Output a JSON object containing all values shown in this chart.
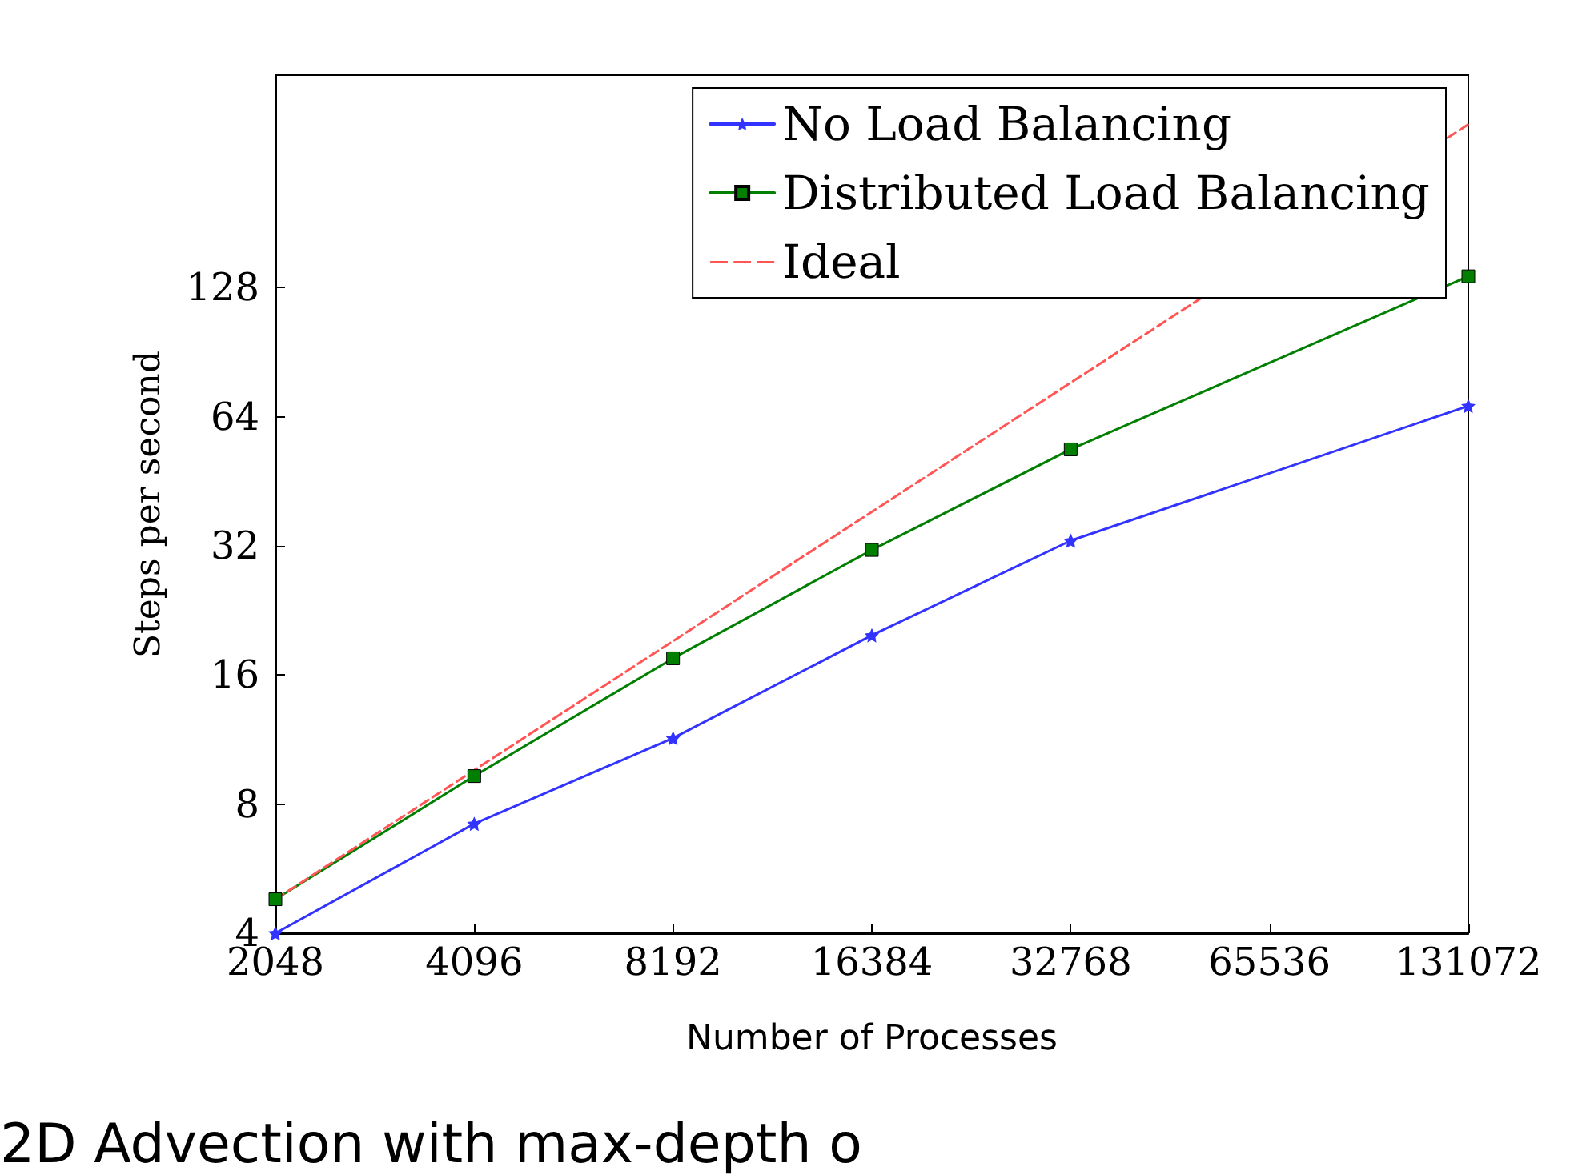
{
  "chart_data": {
    "type": "line",
    "xlabel": "Number of Processes",
    "ylabel": "Steps per second",
    "annotations": [
      "2D Advection with max-depth o"
    ],
    "x": [
      2048,
      4096,
      8192,
      16384,
      32768,
      131072
    ],
    "log": "xy",
    "xlim": [
      2048,
      131072
    ],
    "xticks": [
      2048,
      4096,
      8192,
      16384,
      32768,
      65536,
      131072
    ],
    "ylim": [
      4,
      400
    ],
    "yticks": [
      4,
      8,
      16,
      32,
      64,
      128
    ],
    "grid": false,
    "legend": "top right",
    "series": [
      {
        "name": "No Load Balancing",
        "color": "#3333ff",
        "marker": "star",
        "line_style": "solid",
        "values": [
          4.0,
          7.2,
          11.4,
          19.8,
          32.9,
          67.8
        ]
      },
      {
        "name": "Distributed Load Balancing",
        "color": "#007f00",
        "marker": "square",
        "line_style": "solid",
        "values": [
          4.8,
          9.3,
          17.5,
          31.3,
          53.7,
          136
        ]
      },
      {
        "name": "Ideal",
        "color": "#ff5555",
        "marker": "none",
        "line_style": "dashed",
        "x": [
          2048,
          4096,
          8192,
          16384,
          32768,
          65536,
          131072
        ],
        "values": [
          4.8,
          9.6,
          19.2,
          38.4,
          76.8,
          null,
          307.2
        ]
      }
    ]
  }
}
